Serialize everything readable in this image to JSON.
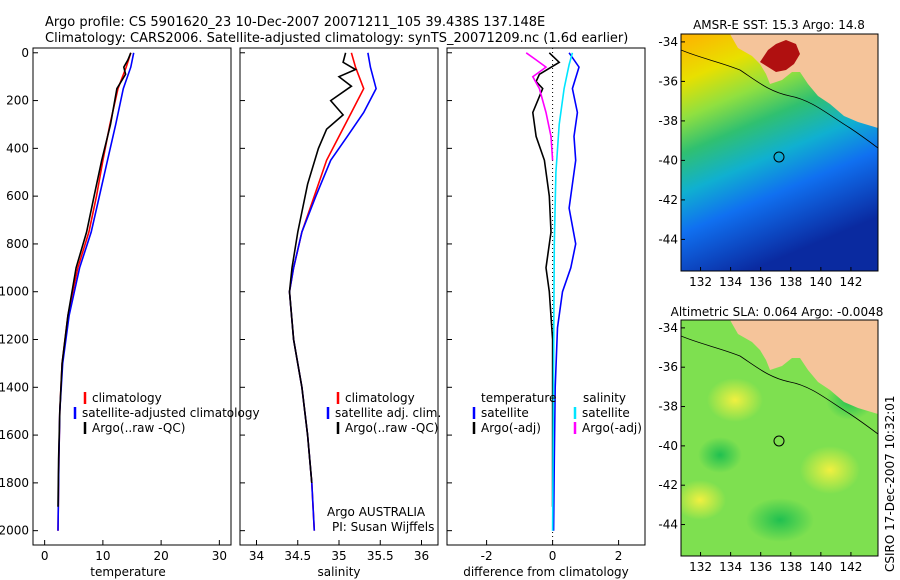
{
  "title_line1": "Argo profile: CS 5901620_23 10-Dec-2007 20071211_105 39.438S 137.148E",
  "title_line2": "Climatology: CARS2006. Satellite-adjusted climatology: synTS_20071209.nc (1.6d earlier)",
  "credit": "CSIRO 17-Dec-2007 10:32:01",
  "colors": {
    "climatology": "#ff0000",
    "satellite": "#0000ff",
    "argo": "#000000",
    "satellite_diff": "#00e5ff",
    "argo_diff": "#ff00ff",
    "land": "#f5c49a"
  },
  "chart_data": [
    {
      "type": "line",
      "xlabel": "temperature",
      "xticks": [
        "0",
        "10",
        "20",
        "30"
      ],
      "xlim": [
        -2,
        32
      ],
      "yticks": [
        "0",
        "200",
        "400",
        "600",
        "800",
        "1000",
        "1200",
        "1400",
        "1600",
        "1800",
        "2000"
      ],
      "ylim": [
        2060,
        -20
      ],
      "legend": [
        "climatology",
        "satellite-adjusted climatology",
        "Argo(..raw -QC)"
      ],
      "series": [
        {
          "name": "climatology",
          "x": [
            14.8,
            14.0,
            12.6,
            11.2,
            10.0,
            8.9,
            7.6,
            5.7,
            4.0,
            3.0,
            2.6,
            2.45,
            2.35,
            2.3
          ],
          "y": [
            0,
            60,
            150,
            300,
            450,
            600,
            750,
            900,
            1100,
            1300,
            1500,
            1700,
            1900,
            2000
          ]
        },
        {
          "name": "satellite-adjusted climatology",
          "x": [
            15.3,
            14.8,
            13.5,
            12.2,
            10.8,
            9.4,
            8.0,
            6.0,
            4.2,
            3.1,
            2.6,
            2.45,
            2.35,
            2.3
          ],
          "y": [
            0,
            60,
            150,
            300,
            450,
            600,
            750,
            900,
            1100,
            1300,
            1500,
            1700,
            1900,
            2000
          ]
        },
        {
          "name": "Argo(..raw -QC)",
          "x": [
            14.8,
            14.3,
            13.6,
            13.9,
            12.4,
            11.3,
            9.8,
            8.5,
            7.2,
            5.4,
            4.0,
            3.0,
            2.6,
            2.4,
            2.3
          ],
          "y": [
            0,
            30,
            60,
            90,
            150,
            300,
            450,
            600,
            750,
            900,
            1100,
            1300,
            1500,
            1700,
            1900
          ]
        }
      ]
    },
    {
      "type": "line",
      "xlabel": "salinity",
      "xticks": [
        "34",
        "34.5",
        "35",
        "35.5",
        "36"
      ],
      "xlim": [
        33.8,
        36.2
      ],
      "yticks": [],
      "ylim": [
        2060,
        -20
      ],
      "legend": [
        "climatology",
        "satellite adj. clim.",
        "Argo(..raw -QC)"
      ],
      "annotation": [
        "Argo AUSTRALIA",
        "PI: Susan Wijffels"
      ],
      "series": [
        {
          "name": "climatology",
          "x": [
            35.15,
            35.2,
            35.3,
            35.15,
            35.0,
            34.85,
            34.7,
            34.55,
            34.45,
            34.4,
            34.45,
            34.55,
            34.62,
            34.67,
            34.7
          ],
          "y": [
            0,
            60,
            150,
            250,
            350,
            450,
            600,
            750,
            900,
            1000,
            1200,
            1400,
            1600,
            1800,
            2000
          ]
        },
        {
          "name": "satellite adj. clim.",
          "x": [
            35.35,
            35.38,
            35.45,
            35.3,
            35.1,
            34.9,
            34.72,
            34.55,
            34.45,
            34.4,
            34.45,
            34.55,
            34.62,
            34.67,
            34.7
          ],
          "y": [
            0,
            60,
            150,
            250,
            350,
            450,
            600,
            750,
            900,
            1000,
            1200,
            1400,
            1600,
            1800,
            2000
          ]
        },
        {
          "name": "Argo(..raw -QC)",
          "x": [
            35.08,
            35.05,
            35.2,
            35.0,
            35.15,
            34.9,
            35.05,
            34.85,
            34.75,
            34.62,
            34.5,
            34.43,
            34.4,
            34.45,
            34.55,
            34.62,
            34.67
          ],
          "y": [
            0,
            40,
            70,
            100,
            140,
            200,
            260,
            320,
            400,
            550,
            750,
            900,
            1000,
            1200,
            1400,
            1600,
            1800
          ]
        }
      ]
    },
    {
      "type": "line",
      "xlabel": "difference from climatology",
      "xticks": [
        "-2",
        "0",
        "2"
      ],
      "xlim": [
        -3.2,
        2.8
      ],
      "yticks": [],
      "ylim": [
        2060,
        -20
      ],
      "legend_headers": [
        "temperature",
        "salinity"
      ],
      "legend": [
        "satellite",
        "Argo(-adj)",
        "satellite",
        "Argo(-adj)"
      ],
      "series": [
        {
          "name": "satellite",
          "x": [
            0.5,
            0.8,
            0.6,
            0.75,
            0.65,
            0.7,
            0.6,
            0.5,
            0.7,
            0.55,
            0.3,
            0.15,
            0.08,
            0.05,
            0.03
          ],
          "y": [
            0,
            60,
            150,
            250,
            350,
            450,
            550,
            650,
            800,
            900,
            1000,
            1150,
            1400,
            1700,
            2000
          ]
        },
        {
          "name": "Argo(-adj)",
          "x": [
            -0.1,
            0.2,
            -0.4,
            -0.5,
            -0.3,
            -0.6,
            -0.5,
            -0.25,
            -0.1,
            -0.05,
            -0.2,
            -0.1,
            0.0,
            0.0
          ],
          "y": [
            0,
            40,
            90,
            120,
            150,
            250,
            350,
            450,
            600,
            750,
            900,
            1000,
            1200,
            1900
          ]
        },
        {
          "name": "satellite",
          "x": [
            0.6,
            0.5,
            0.35,
            0.2,
            0.1,
            0.05,
            0.0
          ],
          "y": [
            0,
            50,
            150,
            300,
            500,
            800,
            2000
          ]
        },
        {
          "name": "Argo(-adj)",
          "x": [
            -0.8,
            -0.5,
            -0.2,
            -0.6,
            -0.4,
            -0.2,
            -0.05,
            0.0
          ],
          "y": [
            0,
            30,
            60,
            100,
            150,
            250,
            350,
            450
          ]
        }
      ]
    },
    {
      "type": "heatmap",
      "title": "AMSR-E SST: 15.3 Argo: 14.8",
      "xticks": [
        "132",
        "134",
        "136",
        "138",
        "140",
        "142"
      ],
      "yticks": [
        "-34",
        "-36",
        "-38",
        "-40",
        "-42",
        "-44"
      ],
      "xlim": [
        130.7,
        143.8
      ],
      "ylim": [
        -33.6,
        -45.6
      ]
    },
    {
      "type": "heatmap",
      "title": "Altimetric SLA: 0.064 Argo: -0.0048",
      "xticks": [
        "132",
        "134",
        "136",
        "138",
        "140",
        "142"
      ],
      "yticks": [
        "-34",
        "-36",
        "-38",
        "-40",
        "-42",
        "-44"
      ],
      "xlim": [
        130.7,
        143.8
      ],
      "ylim": [
        -33.6,
        -45.6
      ]
    }
  ],
  "argo_position": {
    "lat": -39.438,
    "lon": 137.148
  }
}
